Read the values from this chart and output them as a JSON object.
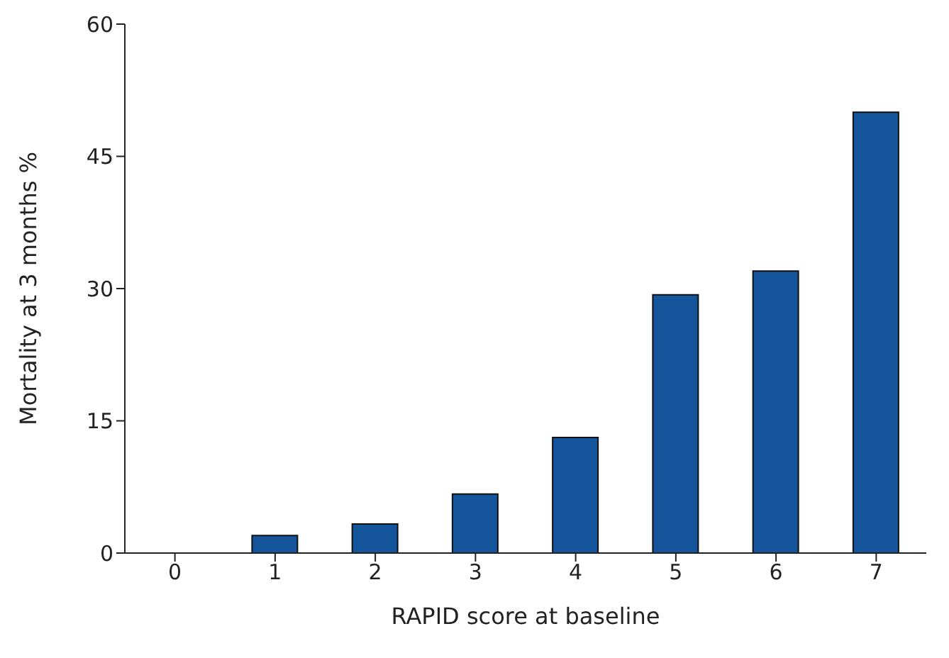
{
  "chart_data": {
    "type": "bar",
    "xlabel": "RAPID score at baseline",
    "ylabel": "Mortality at 3 months %",
    "categories": [
      "0",
      "1",
      "2",
      "3",
      "4",
      "5",
      "6",
      "7"
    ],
    "values": [
      0,
      2.0,
      3.3,
      6.7,
      13.1,
      29.3,
      32.0,
      50.0
    ],
    "color": "#15559b",
    "ylim": [
      0,
      60
    ],
    "yticks": [
      0,
      15,
      30,
      45,
      60
    ]
  }
}
